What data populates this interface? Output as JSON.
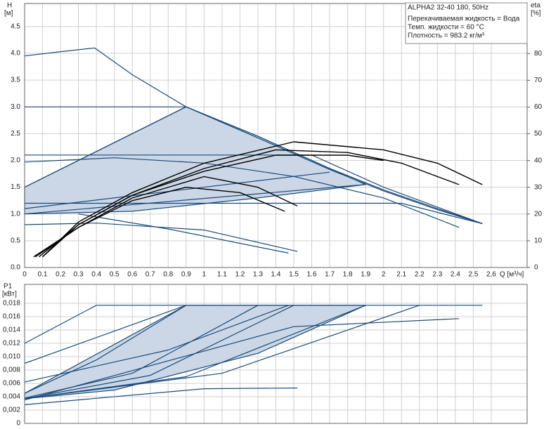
{
  "chart_data": [
    {
      "type": "line",
      "title": "ALPHA2 32-40 180, 50Hz",
      "annotations": [
        "Перекачиваемая жидкость = Вода",
        "Темп. жидкости = 60 °C",
        "Плотность = 983.2 кг/м³"
      ],
      "ylabel": "H",
      "yunit": "[м]",
      "y2label": "eta",
      "y2unit": "[%]",
      "xlabel": "Q [м³/ч]",
      "grid": true,
      "xlim": [
        0,
        2.8
      ],
      "xticks": [
        0,
        0.1,
        0.2,
        0.3,
        0.4,
        0.5,
        0.6,
        0.7,
        0.8,
        0.9,
        1.0,
        1.1,
        1.2,
        1.3,
        1.4,
        1.5,
        1.6,
        1.7,
        1.8,
        1.9,
        2.0,
        2.1,
        2.2,
        2.3,
        2.4,
        2.5,
        {
          "value": 2.6,
          "label": "2,6"
        }
      ],
      "ylim": [
        0,
        4.93
      ],
      "yticks": [
        {
          "value": 0,
          "label": "0.0"
        },
        0.5,
        {
          "value": 1,
          "label": "1.0"
        },
        1.5,
        {
          "value": 2,
          "label": "2.0"
        },
        2.5,
        {
          "value": 3,
          "label": "3.0"
        },
        3.5,
        {
          "value": 4,
          "label": "4.0"
        },
        4.5
      ],
      "y2lim": [
        0,
        98.7
      ],
      "y2ticks": [
        0,
        10,
        20,
        30,
        40,
        50,
        60,
        70,
        80
      ],
      "series": [
        {
          "kind": "area",
          "fill": "#cbd7e6",
          "color": "#1a4a7a",
          "x": [
            0,
            0.9,
            1.3,
            1.9,
            1.3,
            0.6,
            0
          ],
          "values": [
            1.5,
            3.0,
            2.45,
            1.55,
            1.3,
            1.05,
            1.0
          ]
        },
        {
          "color": "#1a4a7a",
          "x": [
            0,
            0.2,
            0.39,
            0.6,
            0.9,
            1.3,
            1.7,
            2.0,
            2.3,
            2.55
          ],
          "values": [
            3.95,
            4.03,
            4.1,
            3.6,
            3.0,
            2.45,
            1.85,
            1.45,
            1.1,
            0.82
          ]
        },
        {
          "color": "#1a4a7a",
          "x": [
            0,
            0.9,
            1.3,
            1.7,
            2.0,
            2.3,
            2.55
          ],
          "values": [
            3.0,
            3.0,
            2.42,
            1.83,
            1.43,
            1.08,
            0.82
          ]
        },
        {
          "color": "#1a4a7a",
          "x": [
            0,
            0.9
          ],
          "values": [
            1.5,
            3.0
          ]
        },
        {
          "color": "#1a4a7a",
          "x": [
            0,
            1.6,
            2.0,
            2.55
          ],
          "values": [
            2.1,
            2.1,
            1.5,
            0.82
          ]
        },
        {
          "color": "#1a4a7a",
          "x": [
            0,
            2.1,
            2.55
          ],
          "values": [
            1.2,
            1.2,
            0.82
          ]
        },
        {
          "color": "#1a4a7a",
          "x": [
            0,
            0.5,
            1.0,
            1.5,
            2.0,
            2.42
          ],
          "values": [
            1.97,
            2.05,
            1.95,
            1.7,
            1.3,
            0.75
          ]
        },
        {
          "color": "#1a4a7a",
          "x": [
            0,
            1.9
          ],
          "values": [
            1.0,
            1.55
          ]
        },
        {
          "color": "#1a4a7a",
          "x": [
            0,
            1.7
          ],
          "values": [
            1.1,
            1.78
          ]
        },
        {
          "color": "#1a4a7a",
          "x": [
            0,
            0.4,
            1.0,
            1.52
          ],
          "values": [
            0.8,
            0.83,
            0.7,
            0.3
          ]
        },
        {
          "color": "#1a4a7a",
          "x": [
            0.3,
            0.8,
            1.47
          ],
          "values": [
            1.0,
            0.72,
            0.27
          ]
        },
        {
          "color": "#000000",
          "axis": "y2",
          "x": [
            0.1,
            0.3,
            0.6,
            1.0,
            1.5,
            2.0,
            2.3,
            2.55
          ],
          "values": [
            4,
            17,
            28,
            39,
            47,
            44,
            39,
            31
          ]
        },
        {
          "color": "#000000",
          "axis": "y2",
          "x": [
            0.1,
            0.3,
            0.6,
            1.0,
            1.4,
            1.8,
            2.1,
            2.42
          ],
          "values": [
            4,
            16,
            27,
            37,
            44,
            43,
            39,
            31
          ]
        },
        {
          "color": "#000000",
          "axis": "y2",
          "x": [
            0.08,
            0.3,
            0.6,
            1.0,
            1.4,
            1.8,
            2.0
          ],
          "values": [
            4,
            16,
            27,
            36,
            42,
            42,
            40
          ]
        },
        {
          "color": "#000000",
          "axis": "y2",
          "x": [
            0.06,
            0.3,
            0.6,
            1.0,
            1.3,
            1.52
          ],
          "values": [
            4,
            15,
            26,
            34,
            30,
            23
          ]
        },
        {
          "color": "#000000",
          "axis": "y2",
          "x": [
            0.05,
            0.3,
            0.6,
            0.9,
            1.2,
            1.45
          ],
          "values": [
            4,
            15,
            25,
            30,
            28,
            21
          ]
        }
      ]
    },
    {
      "type": "line",
      "ylabel": "P1",
      "yunit": "[кВт]",
      "grid": true,
      "xlim": [
        0,
        2.8
      ],
      "ylim": [
        0,
        0.02084
      ],
      "yticks": [
        0,
        {
          "value": 0.002,
          "label": "0,002"
        },
        {
          "value": 0.004,
          "label": "0,004"
        },
        {
          "value": 0.006,
          "label": "0,006"
        },
        {
          "value": 0.008,
          "label": "0,008"
        },
        {
          "value": 0.01,
          "label": "0,010"
        },
        {
          "value": 0.012,
          "label": "0,012"
        },
        {
          "value": 0.014,
          "label": "0,014"
        },
        {
          "value": 0.016,
          "label": "0,016"
        },
        {
          "value": 0.018,
          "label": "0,018"
        }
      ],
      "series": [
        {
          "kind": "area",
          "fill": "#cbd7e6",
          "color": "#1a4a7a",
          "x": [
            0,
            0.9,
            1.9,
            1.3,
            0.5,
            0
          ],
          "values": [
            0.0045,
            0.0177,
            0.0177,
            0.0105,
            0.005,
            0.0037
          ]
        },
        {
          "color": "#1a4a7a",
          "x": [
            0.4,
            2.55
          ],
          "values": [
            0.0177,
            0.0177
          ]
        },
        {
          "color": "#1a4a7a",
          "x": [
            0,
            0.4
          ],
          "values": [
            0.012,
            0.0177
          ]
        },
        {
          "color": "#1a4a7a",
          "x": [
            0,
            0.9
          ],
          "values": [
            0.009,
            0.0177
          ]
        },
        {
          "color": "#1a4a7a",
          "x": [
            0,
            0.4,
            0.9
          ],
          "values": [
            0.0045,
            0.0095,
            0.0177
          ]
        },
        {
          "color": "#1a4a7a",
          "x": [
            0,
            0.6,
            1.3
          ],
          "values": [
            0.0038,
            0.0075,
            0.0177
          ]
        },
        {
          "color": "#1a4a7a",
          "x": [
            0,
            0.7,
            1.5
          ],
          "values": [
            0.0037,
            0.0072,
            0.0177
          ]
        },
        {
          "color": "#1a4a7a",
          "x": [
            0,
            0.9,
            1.9
          ],
          "values": [
            0.0037,
            0.007,
            0.0177
          ]
        },
        {
          "color": "#1a4a7a",
          "x": [
            0,
            1.1,
            2.2
          ],
          "values": [
            0.0037,
            0.0075,
            0.0177
          ]
        },
        {
          "color": "#1a4a7a",
          "x": [
            0,
            1.5,
            2.42
          ],
          "values": [
            0.0035,
            0.0145,
            0.0157
          ]
        },
        {
          "color": "#1a4a7a",
          "x": [
            0,
            1.0,
            1.52
          ],
          "values": [
            0.0028,
            0.0052,
            0.0053
          ]
        },
        {
          "color": "#1a4a7a",
          "x": [
            0,
            0.8,
            1.47
          ],
          "values": [
            0.0062,
            0.011,
            0.0177
          ]
        }
      ]
    }
  ]
}
